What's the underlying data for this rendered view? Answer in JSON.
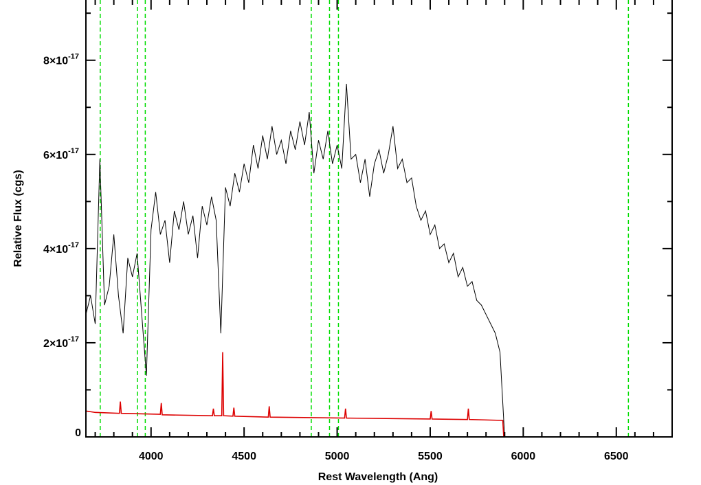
{
  "chart_data": {
    "type": "line",
    "xlabel": "Rest Wavelength (Ang)",
    "ylabel": "Relative Flux (cgs)",
    "xlim": [
      3650,
      6800
    ],
    "ylim": [
      0,
      9.28e-17
    ],
    "xticks": [
      4000,
      4500,
      5000,
      5500,
      6000,
      6500
    ],
    "x_minor_ticks": [
      3700,
      3800,
      3900,
      4100,
      4200,
      4300,
      4400,
      4600,
      4700,
      4800,
      4900,
      5100,
      5200,
      5300,
      5400,
      5600,
      5700,
      5800,
      5900,
      6100,
      6200,
      6300,
      6400,
      6600,
      6700
    ],
    "yticks": [
      0,
      {
        "value": 2e-17,
        "label": "2×10",
        "exponent": "-17"
      },
      {
        "value": 4e-17,
        "label": "4×10",
        "exponent": "-17"
      },
      {
        "value": 6e-17,
        "label": "6×10",
        "exponent": "-17"
      },
      {
        "value": 8e-17,
        "label": "8×10",
        "exponent": "-17"
      }
    ],
    "y_minor_ticks": [
      1e-17,
      3e-17,
      5e-17,
      7e-17,
      9e-17
    ],
    "reference_lines": {
      "color": "#00dd00",
      "x": [
        3727,
        3927,
        3969,
        4861,
        4959,
        5007,
        6565
      ]
    },
    "series": [
      {
        "color": "#000000",
        "x": [
          3650,
          3675,
          3700,
          3725,
          3750,
          3775,
          3800,
          3825,
          3850,
          3875,
          3900,
          3925,
          3950,
          3975,
          4000,
          4025,
          4050,
          4075,
          4100,
          4125,
          4150,
          4175,
          4200,
          4225,
          4250,
          4275,
          4300,
          4325,
          4350,
          4375,
          4400,
          4425,
          4450,
          4475,
          4500,
          4525,
          4550,
          4575,
          4600,
          4625,
          4650,
          4675,
          4700,
          4725,
          4750,
          4775,
          4800,
          4825,
          4850,
          4875,
          4900,
          4925,
          4950,
          4975,
          5000,
          5025,
          5050,
          5075,
          5100,
          5125,
          5150,
          5175,
          5200,
          5225,
          5250,
          5275,
          5300,
          5325,
          5350,
          5375,
          5400,
          5425,
          5450,
          5475,
          5500,
          5525,
          5550,
          5575,
          5600,
          5625,
          5650,
          5675,
          5700,
          5725,
          5750,
          5775,
          5800,
          5825,
          5850,
          5875,
          5900
        ],
        "values": [
          2.6e-17,
          3e-17,
          2.4e-17,
          5.9e-17,
          2.8e-17,
          3.2e-17,
          4.3e-17,
          3e-17,
          2.2e-17,
          3.8e-17,
          3.4e-17,
          3.9e-17,
          2.6e-17,
          1.3e-17,
          4.4e-17,
          5.2e-17,
          4.3e-17,
          4.6e-17,
          3.7e-17,
          4.8e-17,
          4.4e-17,
          5e-17,
          4.3e-17,
          4.7e-17,
          3.8e-17,
          4.9e-17,
          4.5e-17,
          5.1e-17,
          4.6e-17,
          2.2e-17,
          5.3e-17,
          4.9e-17,
          5.6e-17,
          5.2e-17,
          5.8e-17,
          5.4e-17,
          6.2e-17,
          5.7e-17,
          6.4e-17,
          5.9e-17,
          6.6e-17,
          6e-17,
          6.3e-17,
          5.8e-17,
          6.5e-17,
          6.1e-17,
          6.7e-17,
          6.2e-17,
          6.9e-17,
          5.6e-17,
          6.3e-17,
          5.9e-17,
          6.5e-17,
          5.8e-17,
          6.2e-17,
          5.7e-17,
          7.5e-17,
          5.9e-17,
          6e-17,
          5.4e-17,
          5.9e-17,
          5.1e-17,
          5.8e-17,
          6.1e-17,
          5.6e-17,
          6e-17,
          6.6e-17,
          5.7e-17,
          5.9e-17,
          5.4e-17,
          5.5e-17,
          4.9e-17,
          4.6e-17,
          4.8e-17,
          4.3e-17,
          4.5e-17,
          4e-17,
          4.1e-17,
          3.7e-17,
          3.9e-17,
          3.4e-17,
          3.6e-17,
          3.2e-17,
          3.3e-17,
          2.9e-17,
          2.8e-17,
          2.6e-17,
          2.4e-17,
          2.2e-17,
          1.8e-17,
          0
        ]
      },
      {
        "color": "#dd0000",
        "x": [
          3650,
          3700,
          3830,
          3835,
          3840,
          4050,
          4055,
          4060,
          4330,
          4335,
          4340,
          4380,
          4385,
          4390,
          4440,
          4445,
          4450,
          4630,
          4635,
          4640,
          5040,
          5045,
          5050,
          5500,
          5505,
          5510,
          5700,
          5705,
          5710,
          5890,
          5895,
          6800
        ],
        "values": [
          5.5e-18,
          5.2e-18,
          5e-18,
          7.5e-18,
          5e-18,
          4.8e-18,
          7.2e-18,
          4.7e-18,
          4.5e-18,
          6e-18,
          4.5e-18,
          4.5e-18,
          1.8e-17,
          4.5e-18,
          4.4e-18,
          6.2e-18,
          4.4e-18,
          4.2e-18,
          6.5e-18,
          4.2e-18,
          4e-18,
          6e-18,
          4e-18,
          3.8e-18,
          5.5e-18,
          3.8e-18,
          3.7e-18,
          6e-18,
          3.7e-18,
          3.5e-18,
          0,
          0
        ]
      }
    ]
  }
}
